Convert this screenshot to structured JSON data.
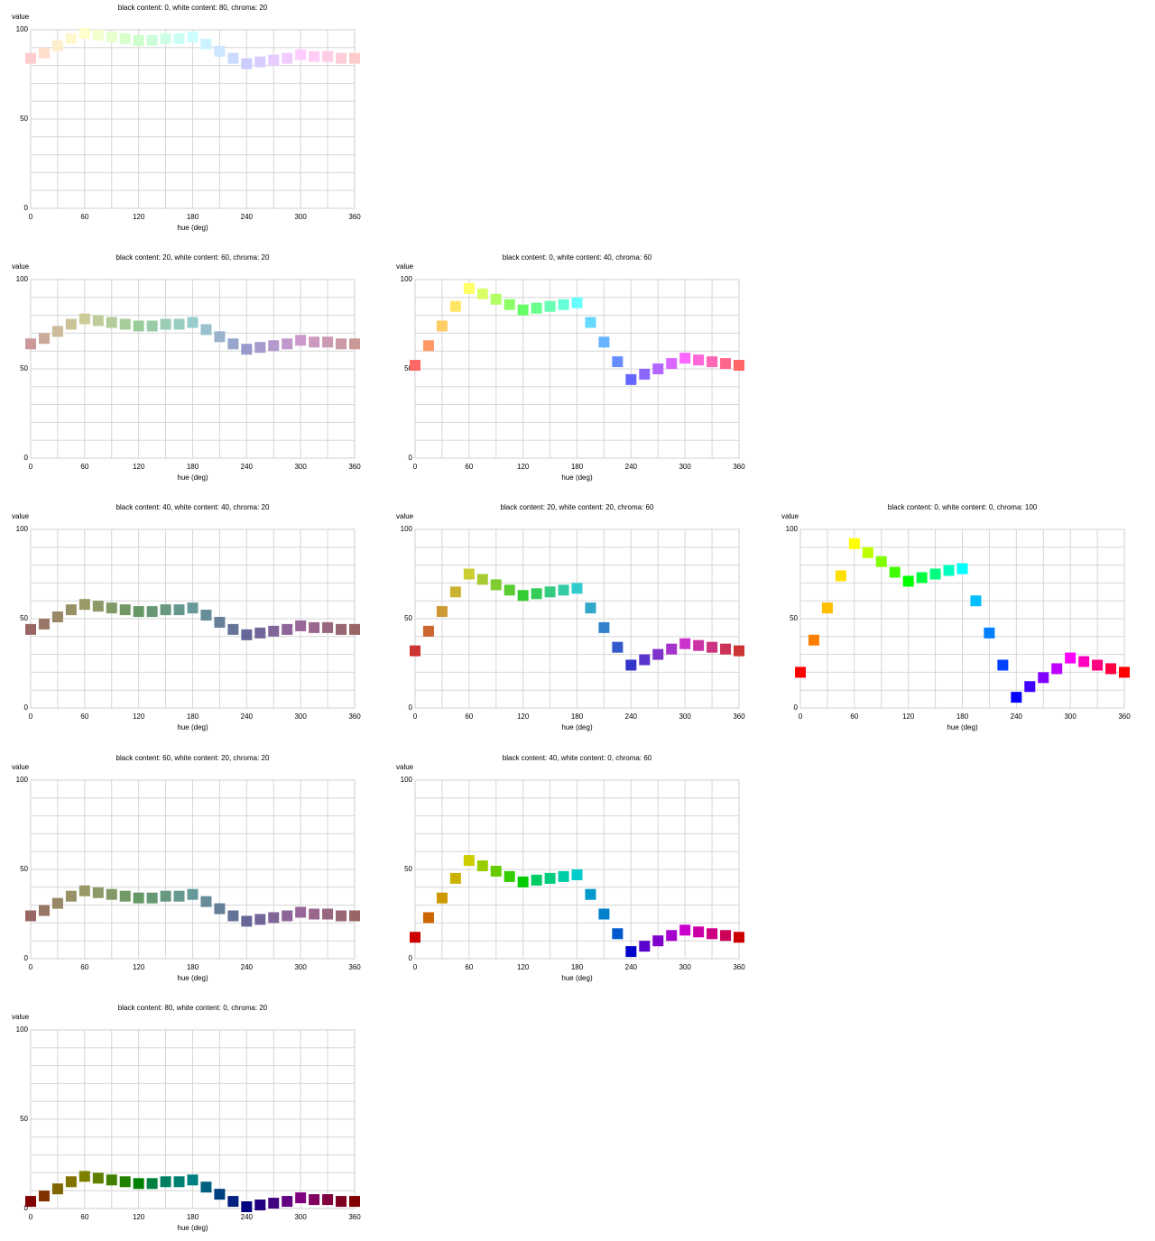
{
  "chart_data": [
    {
      "type": "scatter",
      "title": "black content: 0, white content: 80, chroma: 20",
      "xlabel": "hue (deg)",
      "ylabel": "value",
      "xlim": [
        0,
        360
      ],
      "ylim": [
        0,
        100
      ],
      "xticks": [
        0,
        60,
        120,
        180,
        240,
        300,
        360
      ],
      "yticks": [
        0,
        50,
        100
      ],
      "x": [
        0,
        15,
        30,
        45,
        60,
        75,
        90,
        105,
        120,
        135,
        150,
        165,
        180,
        195,
        210,
        225,
        240,
        255,
        270,
        285,
        300,
        315,
        330,
        345,
        360
      ],
      "values": [
        84,
        87,
        91,
        95,
        98,
        97,
        96,
        95,
        94,
        94,
        95,
        95,
        96,
        92,
        88,
        84,
        81,
        82,
        83,
        84,
        86,
        85,
        85,
        84,
        84
      ],
      "colors": [
        "#ffcccc",
        "#ffddcc",
        "#ffeecc",
        "#fff7cc",
        "#ffffcc",
        "#f3ffcc",
        "#e6ffcc",
        "#d9ffcc",
        "#ccffcc",
        "#ccffd9",
        "#ccffe6",
        "#ccfff3",
        "#ccffff",
        "#ccf3ff",
        "#cce6ff",
        "#ccd9ff",
        "#ccccff",
        "#d9ccff",
        "#e6ccff",
        "#f3ccff",
        "#ffccff",
        "#ffccf3",
        "#ffcce6",
        "#ffccd9",
        "#ffcccc"
      ],
      "grid": true
    },
    {
      "type": "scatter",
      "title": "black content: 20, white content: 60, chroma: 20",
      "xlabel": "hue (deg)",
      "ylabel": "value",
      "xlim": [
        0,
        360
      ],
      "ylim": [
        0,
        100
      ],
      "xticks": [
        0,
        60,
        120,
        180,
        240,
        300,
        360
      ],
      "yticks": [
        0,
        50,
        100
      ],
      "x": [
        0,
        15,
        30,
        45,
        60,
        75,
        90,
        105,
        120,
        135,
        150,
        165,
        180,
        195,
        210,
        225,
        240,
        255,
        270,
        285,
        300,
        315,
        330,
        345,
        360
      ],
      "values": [
        64,
        67,
        71,
        75,
        78,
        77,
        76,
        75,
        74,
        74,
        75,
        75,
        76,
        72,
        68,
        64,
        61,
        62,
        63,
        64,
        66,
        65,
        65,
        64,
        64
      ],
      "colors": [
        "#cc9999",
        "#ccaa99",
        "#ccbb99",
        "#ccc499",
        "#cccc99",
        "#c0cc99",
        "#b3cc99",
        "#a6cc99",
        "#99cc99",
        "#99cca6",
        "#99ccb3",
        "#99ccc0",
        "#99cccc",
        "#99c0cc",
        "#99b3cc",
        "#99a6cc",
        "#9999cc",
        "#a699cc",
        "#b399cc",
        "#c099cc",
        "#cc99cc",
        "#cc99c0",
        "#cc99b3",
        "#cc99a6",
        "#cc9999"
      ],
      "grid": true
    },
    {
      "type": "scatter",
      "title": "black content: 0, white content: 40, chroma: 60",
      "xlabel": "hue (deg)",
      "ylabel": "value",
      "xlim": [
        0,
        360
      ],
      "ylim": [
        0,
        100
      ],
      "xticks": [
        0,
        60,
        120,
        180,
        240,
        300,
        360
      ],
      "yticks": [
        0,
        50,
        100
      ],
      "x": [
        0,
        15,
        30,
        45,
        60,
        75,
        90,
        105,
        120,
        135,
        150,
        165,
        180,
        195,
        210,
        225,
        240,
        255,
        270,
        285,
        300,
        315,
        330,
        345,
        360
      ],
      "values": [
        52,
        63,
        74,
        85,
        95,
        92,
        89,
        86,
        83,
        84,
        85,
        86,
        87,
        76,
        65,
        54,
        44,
        47,
        50,
        53,
        56,
        55,
        54,
        53,
        52
      ],
      "colors": [
        "#ff6666",
        "#ff9966",
        "#ffcc66",
        "#ffe566",
        "#ffff66",
        "#d9ff66",
        "#b3ff66",
        "#8cff66",
        "#66ff66",
        "#66ff8c",
        "#66ffb3",
        "#66ffd9",
        "#66ffff",
        "#66d9ff",
        "#66b3ff",
        "#668cff",
        "#6666ff",
        "#8c66ff",
        "#b366ff",
        "#d966ff",
        "#ff66ff",
        "#ff66d9",
        "#ff66b3",
        "#ff668c",
        "#ff6666"
      ],
      "grid": true
    },
    {
      "type": "scatter",
      "title": "black content: 40, white content: 40, chroma: 20",
      "xlabel": "hue (deg)",
      "ylabel": "value",
      "xlim": [
        0,
        360
      ],
      "ylim": [
        0,
        100
      ],
      "xticks": [
        0,
        60,
        120,
        180,
        240,
        300,
        360
      ],
      "yticks": [
        0,
        50,
        100
      ],
      "x": [
        0,
        15,
        30,
        45,
        60,
        75,
        90,
        105,
        120,
        135,
        150,
        165,
        180,
        195,
        210,
        225,
        240,
        255,
        270,
        285,
        300,
        315,
        330,
        345,
        360
      ],
      "values": [
        44,
        47,
        51,
        55,
        58,
        57,
        56,
        55,
        54,
        54,
        55,
        55,
        56,
        52,
        48,
        44,
        41,
        42,
        43,
        44,
        46,
        45,
        45,
        44,
        44
      ],
      "colors": [
        "#996666",
        "#997766",
        "#998866",
        "#999166",
        "#999966",
        "#8d9966",
        "#809966",
        "#739966",
        "#669966",
        "#669973",
        "#669980",
        "#66998d",
        "#669999",
        "#668d99",
        "#668099",
        "#667399",
        "#666699",
        "#736699",
        "#806699",
        "#8d6699",
        "#996699",
        "#99668d",
        "#996680",
        "#996673",
        "#996666"
      ],
      "grid": true
    },
    {
      "type": "scatter",
      "title": "black content: 20, white content: 20, chroma: 60",
      "xlabel": "hue (deg)",
      "ylabel": "value",
      "xlim": [
        0,
        360
      ],
      "ylim": [
        0,
        100
      ],
      "xticks": [
        0,
        60,
        120,
        180,
        240,
        300,
        360
      ],
      "yticks": [
        0,
        50,
        100
      ],
      "x": [
        0,
        15,
        30,
        45,
        60,
        75,
        90,
        105,
        120,
        135,
        150,
        165,
        180,
        195,
        210,
        225,
        240,
        255,
        270,
        285,
        300,
        315,
        330,
        345,
        360
      ],
      "values": [
        32,
        43,
        54,
        65,
        75,
        72,
        69,
        66,
        63,
        64,
        65,
        66,
        67,
        56,
        45,
        34,
        24,
        27,
        30,
        33,
        36,
        35,
        34,
        33,
        32
      ],
      "colors": [
        "#cc3333",
        "#cc6633",
        "#cc9933",
        "#ccb233",
        "#cccc33",
        "#a6cc33",
        "#80cc33",
        "#59cc33",
        "#33cc33",
        "#33cc59",
        "#33cc80",
        "#33cca6",
        "#33cccc",
        "#33a6cc",
        "#3380cc",
        "#3359cc",
        "#3333cc",
        "#5933cc",
        "#8033cc",
        "#a633cc",
        "#cc33cc",
        "#cc33a6",
        "#cc3380",
        "#cc3359",
        "#cc3333"
      ],
      "grid": true
    },
    {
      "type": "scatter",
      "title": "black content: 0, white content: 0, chroma: 100",
      "xlabel": "hue (deg)",
      "ylabel": "value",
      "xlim": [
        0,
        360
      ],
      "ylim": [
        0,
        100
      ],
      "xticks": [
        0,
        60,
        120,
        180,
        240,
        300,
        360
      ],
      "yticks": [
        0,
        50,
        100
      ],
      "x": [
        0,
        15,
        30,
        45,
        60,
        75,
        90,
        105,
        120,
        135,
        150,
        165,
        180,
        195,
        210,
        225,
        240,
        255,
        270,
        285,
        300,
        315,
        330,
        345,
        360
      ],
      "values": [
        20,
        38,
        56,
        74,
        92,
        87,
        82,
        76,
        71,
        73,
        75,
        77,
        78,
        60,
        42,
        24,
        6,
        12,
        17,
        22,
        28,
        26,
        24,
        22,
        20
      ],
      "colors": [
        "#ff0000",
        "#ff8000",
        "#ffbf00",
        "#ffdf00",
        "#ffff00",
        "#bfff00",
        "#80ff00",
        "#40ff00",
        "#00ff00",
        "#00ff40",
        "#00ff80",
        "#00ffbf",
        "#00ffff",
        "#00bfff",
        "#0080ff",
        "#0040ff",
        "#0000ff",
        "#4000ff",
        "#8000ff",
        "#bf00ff",
        "#ff00ff",
        "#ff00bf",
        "#ff0080",
        "#ff0040",
        "#ff0000"
      ],
      "grid": true
    },
    {
      "type": "scatter",
      "title": "black content: 60, white content: 20, chroma: 20",
      "xlabel": "hue (deg)",
      "ylabel": "value",
      "xlim": [
        0,
        360
      ],
      "ylim": [
        0,
        100
      ],
      "xticks": [
        0,
        60,
        120,
        180,
        240,
        300,
        360
      ],
      "yticks": [
        0,
        50,
        100
      ],
      "x": [
        0,
        15,
        30,
        45,
        60,
        75,
        90,
        105,
        120,
        135,
        150,
        165,
        180,
        195,
        210,
        225,
        240,
        255,
        270,
        285,
        300,
        315,
        330,
        345,
        360
      ],
      "values": [
        24,
        27,
        31,
        35,
        38,
        37,
        36,
        35,
        34,
        34,
        35,
        35,
        36,
        32,
        28,
        24,
        21,
        22,
        23,
        24,
        26,
        25,
        25,
        24,
        24
      ],
      "colors": [
        "#996666",
        "#997766",
        "#998866",
        "#999166",
        "#999966",
        "#8d9966",
        "#809966",
        "#739966",
        "#669966",
        "#669973",
        "#669980",
        "#66998d",
        "#669999",
        "#668d99",
        "#668099",
        "#667399",
        "#666699",
        "#736699",
        "#806699",
        "#8d6699",
        "#996699",
        "#99668d",
        "#996680",
        "#996673",
        "#996666"
      ],
      "grid": true
    },
    {
      "type": "scatter",
      "title": "black content: 40, white content: 0, chroma: 60",
      "xlabel": "hue (deg)",
      "ylabel": "value",
      "xlim": [
        0,
        360
      ],
      "ylim": [
        0,
        100
      ],
      "xticks": [
        0,
        60,
        120,
        180,
        240,
        300,
        360
      ],
      "yticks": [
        0,
        50,
        100
      ],
      "x": [
        0,
        15,
        30,
        45,
        60,
        75,
        90,
        105,
        120,
        135,
        150,
        165,
        180,
        195,
        210,
        225,
        240,
        255,
        270,
        285,
        300,
        315,
        330,
        345,
        360
      ],
      "values": [
        12,
        23,
        34,
        45,
        55,
        52,
        49,
        46,
        43,
        44,
        45,
        46,
        47,
        36,
        25,
        14,
        4,
        7,
        10,
        13,
        16,
        15,
        14,
        13,
        12
      ],
      "colors": [
        "#cc0000",
        "#cc6600",
        "#cc9900",
        "#ccb200",
        "#cccc00",
        "#99cc00",
        "#66cc00",
        "#33cc00",
        "#00cc00",
        "#00cc66",
        "#00cc80",
        "#00cca6",
        "#00cccc",
        "#0099cc",
        "#0080cc",
        "#0059cc",
        "#0000cc",
        "#5900cc",
        "#8000cc",
        "#a600cc",
        "#cc00cc",
        "#cc00a6",
        "#cc0080",
        "#cc0059",
        "#cc0000"
      ],
      "grid": true
    },
    {
      "type": "scatter",
      "title": "black content: 80, white content: 0, chroma: 20",
      "xlabel": "hue (deg)",
      "ylabel": "value",
      "xlim": [
        0,
        360
      ],
      "ylim": [
        0,
        100
      ],
      "xticks": [
        0,
        60,
        120,
        180,
        240,
        300,
        360
      ],
      "yticks": [
        0,
        50,
        100
      ],
      "x": [
        0,
        15,
        30,
        45,
        60,
        75,
        90,
        105,
        120,
        135,
        150,
        165,
        180,
        195,
        210,
        225,
        240,
        255,
        270,
        285,
        300,
        315,
        330,
        345,
        360
      ],
      "values": [
        4,
        7,
        11,
        15,
        18,
        17,
        16,
        15,
        14,
        14,
        15,
        15,
        16,
        12,
        8,
        4,
        1,
        2,
        3,
        4,
        6,
        5,
        5,
        4,
        4
      ],
      "colors": [
        "#800000",
        "#803300",
        "#806600",
        "#807300",
        "#808000",
        "#608000",
        "#408000",
        "#208000",
        "#008000",
        "#008040",
        "#008060",
        "#008070",
        "#008080",
        "#006080",
        "#004080",
        "#002080",
        "#000080",
        "#200080",
        "#400080",
        "#600080",
        "#800080",
        "#800060",
        "#800040",
        "#800020",
        "#800000"
      ],
      "grid": true
    }
  ]
}
